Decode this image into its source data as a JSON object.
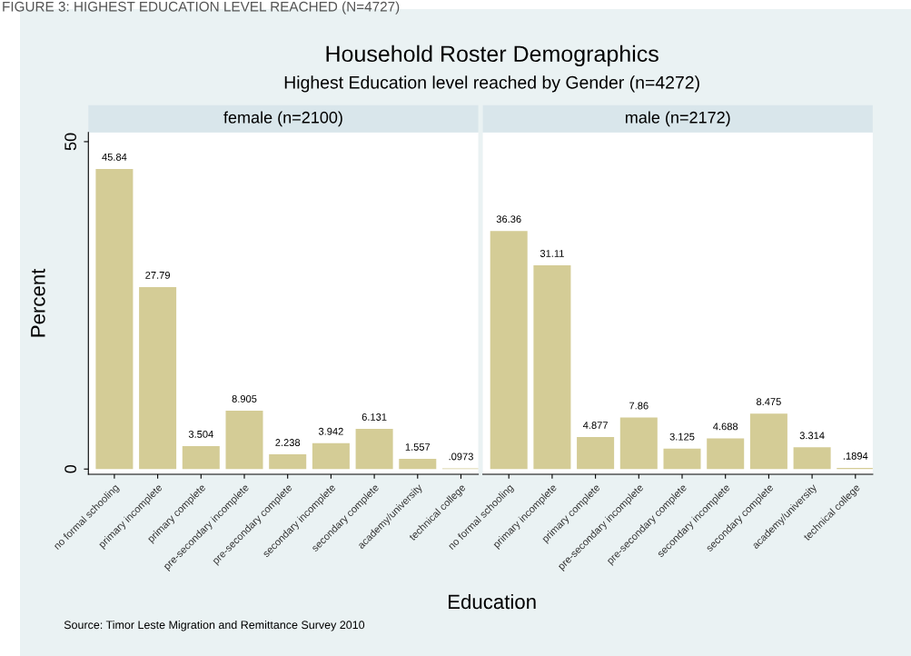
{
  "chart_data": [
    {
      "type": "bar",
      "title": "female (n=2100)",
      "xlabel": "Education",
      "ylabel": "Percent",
      "annotations": [
        "FIGURE 3: HIGHEST EDUCATION LEVEL REACHED (N=4727)",
        "Household Roster Demographics",
        "Highest Education level reached by Gender (n=4272)",
        "Source: Timor Leste Migration and Remittance Survey 2010"
      ],
      "categories": [
        "no formal schooling",
        "primary incomplete",
        "primary complete",
        "pre-secondary incomplete",
        "pre-secondary complete",
        "secondary incomplete",
        "secondary complete",
        "academy/university",
        "technical college"
      ],
      "values": [
        45.84,
        27.79,
        3.504,
        8.905,
        2.238,
        3.942,
        6.131,
        1.557,
        0.0973
      ],
      "value_labels": [
        "45.84",
        "27.79",
        "3.504",
        "8.905",
        "2.238",
        "3.942",
        "6.131",
        "1.557",
        ".0973"
      ],
      "color": "#d4cc96",
      "ylim": [
        -0.8,
        51.4
      ],
      "yticks": [
        0,
        50
      ],
      "grid": false
    },
    {
      "type": "bar",
      "title": "male (n=2172)",
      "categories": [
        "no formal schooling",
        "primary incomplete",
        "primary complete",
        "pre-secondary incomplete",
        "pre-secondary complete",
        "secondary incomplete",
        "secondary complete",
        "academy/university",
        "technical college"
      ],
      "values": [
        36.36,
        31.11,
        4.877,
        7.86,
        3.125,
        4.688,
        8.475,
        3.314,
        0.1894
      ],
      "value_labels": [
        "36.36",
        "31.11",
        "4.877",
        "7.86",
        "3.125",
        "4.688",
        "8.475",
        "3.314",
        ".1894"
      ],
      "color": "#d4cc96",
      "ylim": [
        -0.8,
        51.4
      ],
      "yticks": [
        0,
        50
      ],
      "tick_labels": "x",
      "grid": false
    }
  ]
}
